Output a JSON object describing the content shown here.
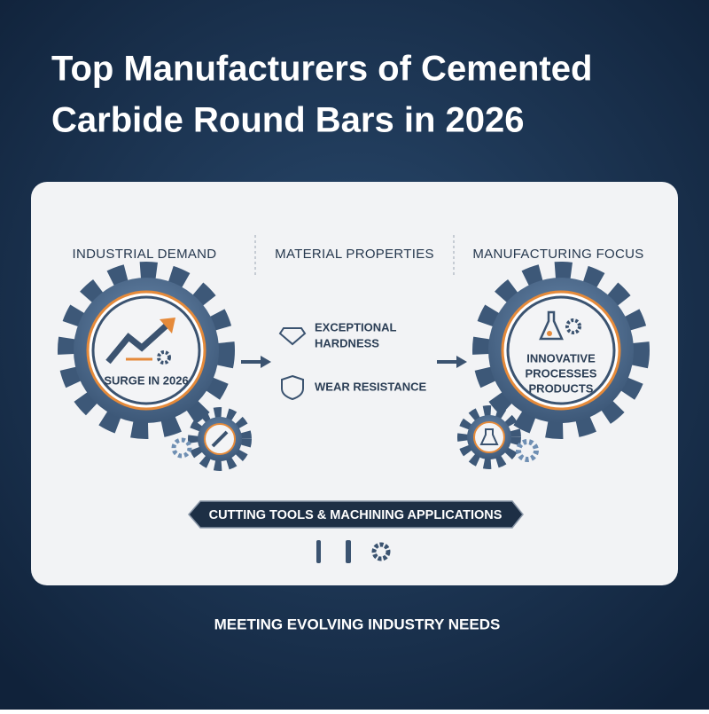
{
  "header": {
    "title_lines": [
      "Top Manufacturers of Cemented",
      "Carbide Round Bars in 2026"
    ]
  },
  "columns": [
    {
      "heading": "INDUSTRIAL DEMAND",
      "gear_label": "SURGE IN 2026"
    },
    {
      "heading": "MATERIAL PROPERTIES",
      "items": [
        {
          "lines": [
            "EXCEPTIONAL",
            "HARDNESS"
          ]
        },
        {
          "lines": [
            "WEAR RESISTANCE"
          ]
        }
      ]
    },
    {
      "heading": "MANUFACTURING FOCUS",
      "gear_lines": [
        "INNOVATIVE",
        "PROCESSES",
        "PRODUCTS"
      ]
    }
  ],
  "banner": "CUTTING TOOLS & MACHINING APPLICATIONS",
  "footer": "MEETING EVOLVING INDUSTRY NEEDS"
}
